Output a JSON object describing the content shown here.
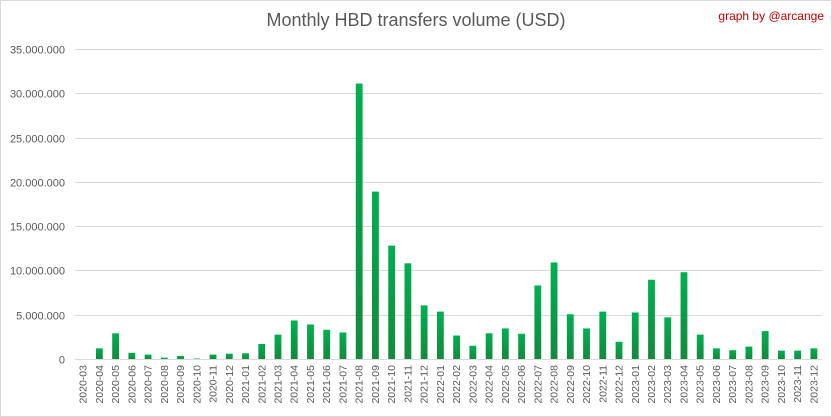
{
  "title": "Monthly HBD transfers volume (USD)",
  "credit": "graph by @arcange",
  "colors": {
    "bar_top": "#00b050",
    "bar_bottom": "#138a3c",
    "grid": "#d9d9d9",
    "text": "#595959",
    "credit": "#c00000"
  },
  "chart_data": {
    "type": "bar",
    "title": "Monthly HBD transfers volume (USD)",
    "xlabel": "",
    "ylabel": "",
    "ylim": [
      0,
      35000000
    ],
    "yticks": [
      0,
      5000000,
      10000000,
      15000000,
      20000000,
      25000000,
      30000000,
      35000000
    ],
    "ytick_labels": [
      "0",
      "5.000.000",
      "10.000.000",
      "15.000.000",
      "20.000.000",
      "25.000.000",
      "30.000.000",
      "35.000.000"
    ],
    "grid": true,
    "categories": [
      "2020-03",
      "2020-04",
      "2020-05",
      "2020-06",
      "2020-07",
      "2020-08",
      "2020-09",
      "2020-10",
      "2020-11",
      "2020-12",
      "2021-01",
      "2021-02",
      "2021-03",
      "2021-04",
      "2021-05",
      "2021-06",
      "2021-07",
      "2021-08",
      "2021-09",
      "2021-10",
      "2021-11",
      "2021-12",
      "2022-01",
      "2022-02",
      "2022-03",
      "2022-04",
      "2022-05",
      "2022-06",
      "2022-07",
      "2022-08",
      "2022-09",
      "2022-10",
      "2022-11",
      "2022-12",
      "2023-01",
      "2023-02",
      "2023-03",
      "2023-04",
      "2023-05",
      "2023-06",
      "2023-07",
      "2023-08",
      "2023-09",
      "2023-10",
      "2023-11",
      "2023-12"
    ],
    "values": [
      0,
      1200000,
      2900000,
      700000,
      500000,
      150000,
      350000,
      50000,
      500000,
      600000,
      650000,
      1700000,
      2750000,
      4350000,
      3900000,
      3300000,
      3000000,
      31100000,
      18900000,
      12800000,
      10800000,
      6050000,
      5350000,
      2650000,
      1500000,
      2900000,
      3450000,
      2850000,
      8300000,
      10900000,
      5050000,
      3450000,
      5350000,
      1950000,
      5250000,
      8950000,
      4700000,
      9800000,
      2750000,
      1200000,
      1000000,
      1400000,
      3150000,
      950000,
      950000,
      1200000
    ]
  }
}
